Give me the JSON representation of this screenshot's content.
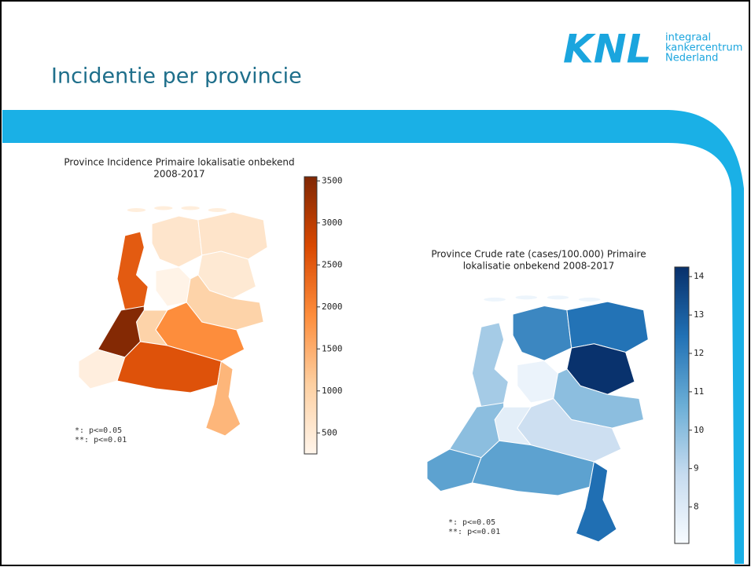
{
  "header": {
    "title": "Incidentie per provincie",
    "logo": {
      "mark": "KNL",
      "lines": [
        "integraal",
        "kankercentrum",
        "Nederland"
      ]
    }
  },
  "maps": [
    {
      "title_lines": [
        "Province Incidence  Primaire lokalisatie onbekend",
        "2008-2017"
      ],
      "values": [
        600,
        620,
        520,
        2500,
        300,
        1000,
        1900,
        1000,
        3500,
        400,
        2600,
        1400
      ],
      "colormap": [
        "#fff5eb",
        "#fdd0a2",
        "#fd8d3c",
        "#d94801",
        "#7f2704"
      ],
      "clim": [
        250,
        3550
      ],
      "ticks": [
        500,
        1000,
        1500,
        2000,
        2500,
        3000,
        3500
      ],
      "footnotes": [
        "*:  p<=0.05",
        "**: p<=0.01"
      ]
    },
    {
      "title_lines": [
        "Province Crude rate (cases/100.000) Primaire",
        "lokalisatie onbekend 2008-2017"
      ],
      "values": [
        11.8,
        12.4,
        14.2,
        9.5,
        7.5,
        10.0,
        8.6,
        7.8,
        10.0,
        11.0,
        11.0,
        12.5
      ],
      "colormap": [
        "#f7fbff",
        "#c6dbef",
        "#6baed6",
        "#2171b5",
        "#08306b"
      ],
      "clim": [
        7.05,
        14.25
      ],
      "ticks": [
        8,
        9,
        10,
        11,
        12,
        13,
        14
      ],
      "footnotes": [
        "*:  p<=0.05",
        "**: p<=0.01"
      ]
    }
  ]
}
